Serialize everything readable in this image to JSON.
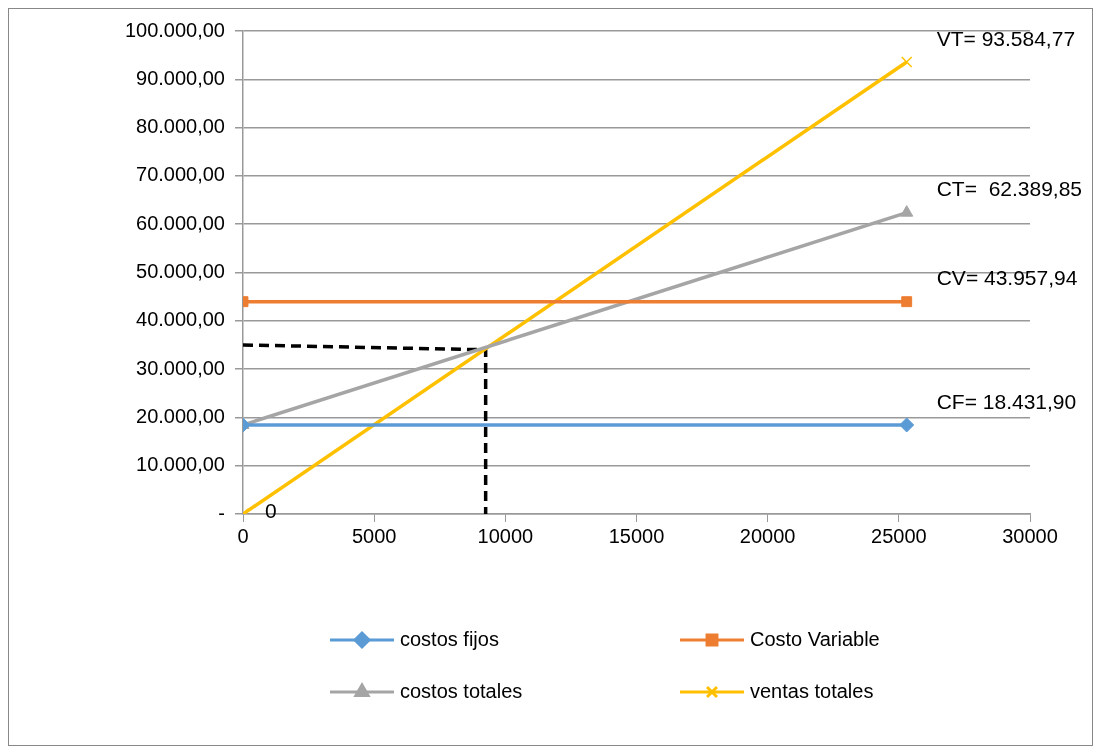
{
  "chart_data": {
    "type": "line",
    "xlim": [
      0,
      30000
    ],
    "xticks": [
      0,
      5000,
      10000,
      15000,
      20000,
      25000,
      30000
    ],
    "ylim": [
      0,
      100000
    ],
    "yticks": [
      {
        "value": 0,
        "label": "-"
      },
      {
        "value": 10000,
        "label": "10.000,00"
      },
      {
        "value": 20000,
        "label": "20.000,00"
      },
      {
        "value": 30000,
        "label": "30.000,00"
      },
      {
        "value": 40000,
        "label": "40.000,00"
      },
      {
        "value": 50000,
        "label": "50.000,00"
      },
      {
        "value": 60000,
        "label": "60.000,00"
      },
      {
        "value": 70000,
        "label": "70.000,00"
      },
      {
        "value": 80000,
        "label": "80.000,00"
      },
      {
        "value": 90000,
        "label": "90.000,00"
      },
      {
        "value": 100000,
        "label": "100.000,00"
      }
    ],
    "grid": "y",
    "legend": "bottom",
    "series": [
      {
        "name": "costos fijos",
        "color": "#5b9bd5",
        "marker": "diamond",
        "x": [
          0,
          25300
        ],
        "values": [
          18431.9,
          18431.9
        ],
        "value_labels": [
          null,
          "CF= 18.431,90"
        ]
      },
      {
        "name": "Costo Variable",
        "color": "#ed7d31",
        "marker": "square",
        "x": [
          0,
          25300
        ],
        "values": [
          43957.94,
          43957.94
        ],
        "value_labels": [
          null,
          "CV= 43.957,94"
        ]
      },
      {
        "name": "costos totales",
        "color": "#a5a5a5",
        "marker": "triangle",
        "x": [
          0,
          25300
        ],
        "values": [
          18431.9,
          62389.85
        ],
        "value_labels": [
          null,
          "CT=  62.389,85"
        ]
      },
      {
        "name": "ventas totales",
        "color": "#ffc000",
        "marker": "cross",
        "x": [
          0,
          25300
        ],
        "values": [
          0,
          93584.77
        ],
        "value_labels": [
          "0",
          "VT= 93.584,77"
        ]
      },
      {
        "type": "line",
        "color": "#000000",
        "marker": "none",
        "line_style": "dashed",
        "x": [
          0,
          9250,
          9250
        ],
        "values": [
          35000,
          34000,
          0
        ]
      }
    ]
  }
}
